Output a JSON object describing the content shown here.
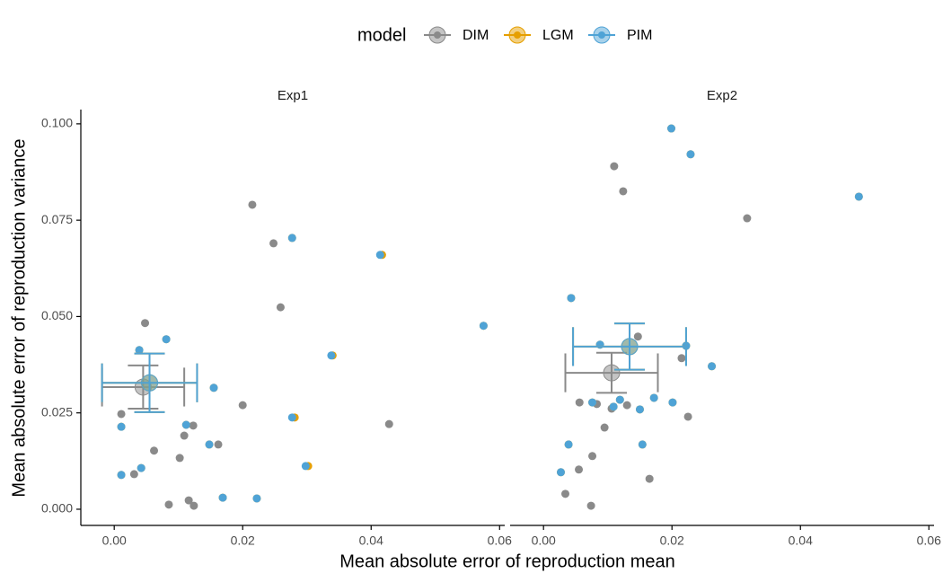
{
  "chart_data": {
    "type": "scatter",
    "legend_title": "model",
    "legend_position": "top",
    "xlabel": "Mean absolute error of reproduction mean",
    "ylabel": "Mean absolute error of reproduction variance",
    "xlim": [
      -0.0052,
      0.0608
    ],
    "ylim": [
      -0.0042,
      0.1037
    ],
    "xticks": [
      {
        "value": 0,
        "label": "0.00"
      },
      {
        "value": 0.02,
        "label": "0.02"
      },
      {
        "value": 0.04,
        "label": "0.04"
      },
      {
        "value": 0.06,
        "label": "0.06"
      }
    ],
    "yticks": [
      {
        "value": 0,
        "label": "0.000"
      },
      {
        "value": 0.025,
        "label": "0.025"
      },
      {
        "value": 0.05,
        "label": "0.050"
      },
      {
        "value": 0.075,
        "label": "0.075"
      },
      {
        "value": 0.1,
        "label": "0.100"
      }
    ],
    "models": [
      {
        "name": "DIM",
        "color": "#8a8a8a"
      },
      {
        "name": "LGM",
        "color": "#e69f00"
      },
      {
        "name": "PIM",
        "color": "#4fa3d6"
      }
    ],
    "panels": [
      {
        "title": "Exp1",
        "series": [
          {
            "x": [
              0.0048,
              0.0011,
              0.0062,
              0.0031,
              0.0085,
              0.0102,
              0.0109,
              0.0123,
              0.0116,
              0.0124,
              0.0162,
              0.02,
              0.0215,
              0.0248,
              0.0259,
              0.0428
            ],
            "values": [
              0.0483,
              0.0247,
              0.0152,
              0.0091,
              0.0012,
              0.0133,
              0.0191,
              0.0217,
              0.0023,
              0.0009,
              0.0168,
              0.027,
              0.079,
              0.069,
              0.0524,
              0.0221
            ]
          },
          {
            "x": [
              0.0039,
              0.0081,
              0.0011,
              0.0011,
              0.0042,
              0.0112,
              0.0148,
              0.0155,
              0.0169,
              0.0222,
              0.0277,
              0.0281,
              0.0302,
              0.034,
              0.0417,
              0.0575
            ],
            "values": [
              0.0413,
              0.0441,
              0.0214,
              0.0089,
              0.0107,
              0.0219,
              0.0168,
              0.0315,
              0.003,
              0.0028,
              0.0704,
              0.0238,
              0.0112,
              0.0399,
              0.066,
              0.0476
            ]
          },
          {
            "x": [
              0.0039,
              0.0081,
              0.0011,
              0.0011,
              0.0042,
              0.0112,
              0.0148,
              0.0155,
              0.0169,
              0.0222,
              0.0277,
              0.0277,
              0.0298,
              0.0338,
              0.0414,
              0.0575
            ],
            "values": [
              0.0413,
              0.0441,
              0.0214,
              0.0089,
              0.0107,
              0.0219,
              0.0168,
              0.0315,
              0.003,
              0.0028,
              0.0704,
              0.0238,
              0.0112,
              0.0399,
              0.066,
              0.0476
            ]
          }
        ],
        "means": [
          {
            "x": 0.0045,
            "y": 0.0317,
            "xerr": 0.0064,
            "yerr": 0.0056
          },
          {
            "x": 0.0055,
            "y": 0.0328,
            "xerr": 0.0074,
            "yerr": 0.0076
          },
          {
            "x": 0.0055,
            "y": 0.0328,
            "xerr": 0.0074,
            "yerr": 0.0076
          }
        ]
      },
      {
        "title": "Exp2",
        "series": [
          {
            "x": [
              0.011,
              0.0124,
              0.0317,
              0.0147,
              0.0215,
              0.0056,
              0.0083,
              0.0106,
              0.013,
              0.0095,
              0.0076,
              0.0055,
              0.0034,
              0.0074,
              0.0165,
              0.0225
            ],
            "values": [
              0.089,
              0.0825,
              0.0755,
              0.0448,
              0.0392,
              0.0277,
              0.0273,
              0.0261,
              0.027,
              0.0212,
              0.0138,
              0.0103,
              0.004,
              0.0009,
              0.0079,
              0.024
            ]
          },
          {
            "x": [
              0.0199,
              0.0229,
              0.0491,
              0.0043,
              0.0088,
              0.0222,
              0.0262,
              0.0076,
              0.0119,
              0.0109,
              0.0172,
              0.015,
              0.0201,
              0.0039,
              0.0154,
              0.0027
            ],
            "values": [
              0.0988,
              0.0921,
              0.0811,
              0.0548,
              0.0427,
              0.0424,
              0.0371,
              0.0277,
              0.0284,
              0.0266,
              0.0289,
              0.0259,
              0.0277,
              0.0168,
              0.0168,
              0.0096
            ]
          },
          {
            "x": [
              0.0199,
              0.0229,
              0.0491,
              0.0043,
              0.0088,
              0.0222,
              0.0262,
              0.0076,
              0.0119,
              0.0109,
              0.0172,
              0.015,
              0.0201,
              0.0039,
              0.0154,
              0.0027
            ],
            "values": [
              0.0988,
              0.0921,
              0.0811,
              0.0548,
              0.0427,
              0.0424,
              0.0371,
              0.0277,
              0.0284,
              0.0266,
              0.0289,
              0.0259,
              0.0277,
              0.0168,
              0.0168,
              0.0096
            ]
          }
        ],
        "means": [
          {
            "x": 0.0106,
            "y": 0.0354,
            "xerr": 0.0072,
            "yerr": 0.0052
          },
          {
            "x": 0.0134,
            "y": 0.0422,
            "xerr": 0.0088,
            "yerr": 0.006
          },
          {
            "x": 0.0134,
            "y": 0.0422,
            "xerr": 0.0088,
            "yerr": 0.006
          }
        ]
      }
    ]
  }
}
